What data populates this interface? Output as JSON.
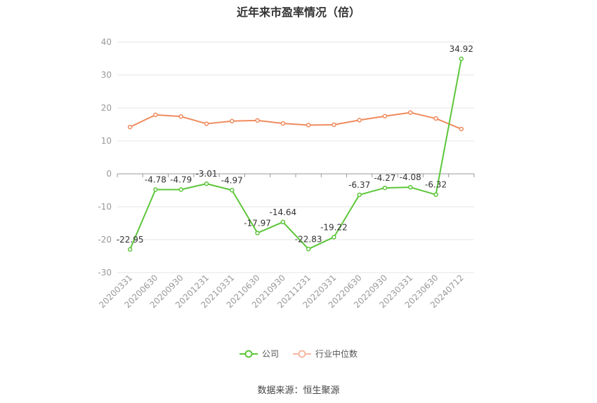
{
  "title": "近年来市盈率情况（倍）",
  "source": "数据来源：恒生聚源",
  "chart_data": {
    "type": "line",
    "title": "近年来市盈率情况（倍）",
    "x": [
      "20200331",
      "20200630",
      "20200930",
      "20201231",
      "20210331",
      "20210630",
      "20210930",
      "20211231",
      "20220331",
      "20220630",
      "20220930",
      "20230331",
      "20230630",
      "20240712"
    ],
    "ylim": [
      -30,
      40
    ],
    "yticks": [
      40,
      30,
      20,
      10,
      0,
      -10,
      -20,
      -30
    ],
    "grid": true,
    "legend_position": "bottom",
    "series": [
      {
        "name": "公司",
        "color": "#5cc639",
        "values": [
          -22.95,
          -4.78,
          -4.79,
          -3.01,
          -4.97,
          -17.97,
          -14.64,
          -22.83,
          -19.22,
          -6.37,
          -4.27,
          -4.08,
          -6.32,
          34.92
        ],
        "labels": [
          "-22.95",
          "-4.78",
          "-4.79",
          "-3.01",
          "-4.97",
          "-17.97",
          "-14.64",
          "-22.83",
          "-19.22",
          "-6.37",
          "-4.27",
          "-4.08",
          "-6.32",
          "34.92"
        ]
      },
      {
        "name": "行业中位数",
        "color": "#f08a5d",
        "values": [
          14.2,
          17.9,
          17.4,
          15.2,
          16.0,
          16.2,
          15.3,
          14.8,
          14.9,
          16.3,
          17.5,
          18.6,
          16.8,
          13.6
        ]
      }
    ]
  }
}
